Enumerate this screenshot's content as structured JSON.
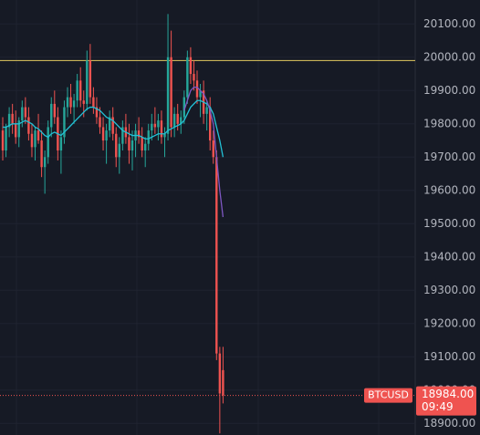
{
  "chart_data": {
    "type": "candlestick",
    "symbol": "BTCUSD",
    "countdown": "09:49",
    "last_price": {
      "value": 18984,
      "label": "18984.00"
    },
    "hline": {
      "value": 19990,
      "color": "#c9b458"
    },
    "up_color": "#26a69a",
    "down_color": "#ef5350",
    "ylim": [
      18875,
      20160
    ],
    "yticks": [
      {
        "value": 20100,
        "label": "20100.00"
      },
      {
        "value": 20000,
        "label": "20000.00"
      },
      {
        "value": 19900,
        "label": "19900.00"
      },
      {
        "value": 19800,
        "label": "19800.00"
      },
      {
        "value": 19700,
        "label": "19700.00"
      },
      {
        "value": 19600,
        "label": "19600.00"
      },
      {
        "value": 19500,
        "label": "19500.00"
      },
      {
        "value": 19400,
        "label": "19400.00"
      },
      {
        "value": 19300,
        "label": "19300.00"
      },
      {
        "value": 19200,
        "label": "19200.00"
      },
      {
        "value": 19100,
        "label": "19100.00"
      },
      {
        "value": 19000,
        "label": "19000.00"
      },
      {
        "value": 18900,
        "label": "18900.00"
      }
    ],
    "grid": true,
    "open": [
      19780,
      19720,
      19790,
      19830,
      19800,
      19760,
      19810,
      19850,
      19820,
      19770,
      19730,
      19780,
      19750,
      19670,
      19700,
      19790,
      19860,
      19820,
      19720,
      19760,
      19850,
      19880,
      19850,
      19870,
      19930,
      19870,
      19860,
      19990,
      19880,
      19850,
      19820,
      19790,
      19750,
      19780,
      19820,
      19770,
      19700,
      19740,
      19790,
      19760,
      19720,
      19750,
      19780,
      19760,
      19720,
      19740,
      19780,
      19800,
      19790,
      19810,
      19760,
      19770,
      20000,
      19790,
      19830,
      19800,
      19820,
      19880,
      20000,
      19950,
      19930,
      19880,
      19900,
      19830,
      19850,
      19750,
      19700,
      19110,
      19060
    ],
    "high": [
      19820,
      19800,
      19850,
      19860,
      19840,
      19820,
      19870,
      19880,
      19850,
      19800,
      19790,
      19830,
      19780,
      19720,
      19810,
      19880,
      19900,
      19850,
      19780,
      19870,
      19910,
      19920,
      19890,
      19950,
      19970,
      19900,
      20020,
      20040,
      19910,
      19880,
      19850,
      19820,
      19800,
      19840,
      19850,
      19790,
      19760,
      19810,
      19830,
      19800,
      19780,
      19800,
      19820,
      19790,
      19760,
      19800,
      19830,
      19850,
      19830,
      19840,
      19790,
      20130,
      20080,
      19850,
      19860,
      19840,
      19900,
      20020,
      20030,
      19990,
      19960,
      19920,
      19930,
      19870,
      19880,
      19780,
      19720,
      19130,
      19130
    ],
    "low": [
      19690,
      19700,
      19760,
      19770,
      19740,
      19730,
      19790,
      19800,
      19750,
      19700,
      19690,
      19740,
      19640,
      19590,
      19680,
      19760,
      19800,
      19690,
      19650,
      19740,
      19820,
      19830,
      19800,
      19850,
      19850,
      19820,
      19840,
      19860,
      19830,
      19800,
      19770,
      19720,
      19680,
      19760,
      19750,
      19670,
      19650,
      19720,
      19740,
      19680,
      19660,
      19700,
      19740,
      19700,
      19670,
      19720,
      19750,
      19770,
      19750,
      19740,
      19700,
      19750,
      19760,
      19760,
      19780,
      19770,
      19800,
      19860,
      19920,
      19900,
      19860,
      19820,
      19800,
      19780,
      19720,
      19680,
      19090,
      18870,
      18960
    ],
    "close": [
      19720,
      19790,
      19830,
      19800,
      19760,
      19810,
      19850,
      19820,
      19770,
      19730,
      19780,
      19750,
      19670,
      19700,
      19790,
      19860,
      19820,
      19720,
      19760,
      19850,
      19880,
      19850,
      19870,
      19930,
      19870,
      19860,
      19990,
      19880,
      19850,
      19820,
      19790,
      19750,
      19780,
      19820,
      19770,
      19700,
      19740,
      19790,
      19760,
      19720,
      19750,
      19780,
      19760,
      19720,
      19740,
      19780,
      19800,
      19790,
      19810,
      19760,
      19770,
      20000,
      19790,
      19830,
      19800,
      19820,
      19880,
      20000,
      19950,
      19930,
      19880,
      19900,
      19830,
      19850,
      19750,
      19700,
      19110,
      18990,
      18984
    ],
    "series": [
      {
        "color": "#22c1d6",
        "values": [
          19790,
          19790,
          19795,
          19800,
          19800,
          19800,
          19805,
          19810,
          19805,
          19800,
          19790,
          19785,
          19775,
          19765,
          19760,
          19770,
          19775,
          19770,
          19765,
          19775,
          19785,
          19795,
          19805,
          19815,
          19825,
          19835,
          19845,
          19850,
          19850,
          19845,
          19840,
          19830,
          19820,
          19815,
          19810,
          19800,
          19790,
          19780,
          19775,
          19770,
          19765,
          19765,
          19765,
          19760,
          19755,
          19755,
          19760,
          19765,
          19770,
          19770,
          19770,
          19780,
          19785,
          19790,
          19795,
          19800,
          19810,
          19830,
          19850,
          19860,
          19870,
          19870,
          19865,
          19860,
          19850,
          19830,
          19790,
          19750,
          19700
        ]
      },
      {
        "color": "#7e57c2",
        "values": [
          null,
          null,
          null,
          null,
          null,
          null,
          null,
          null,
          null,
          null,
          null,
          null,
          null,
          null,
          null,
          null,
          null,
          null,
          null,
          null,
          null,
          null,
          null,
          null,
          null,
          null,
          null,
          null,
          null,
          null,
          null,
          null,
          null,
          null,
          null,
          null,
          null,
          null,
          null,
          null,
          null,
          null,
          null,
          null,
          null,
          null,
          null,
          null,
          null,
          null,
          null,
          null,
          null,
          null,
          null,
          null,
          19840,
          19870,
          19900,
          19910,
          19910,
          19900,
          19890,
          19870,
          19840,
          19800,
          19700,
          19600,
          19520
        ]
      }
    ]
  }
}
